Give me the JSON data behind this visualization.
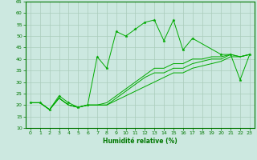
{
  "xlabel": "Humidité relative (%)",
  "ylabel": "",
  "bg_color": "#cce8e0",
  "grid_color": "#aaccbb",
  "line_color": "#00aa00",
  "marker_color": "#00aa00",
  "xlim": [
    -0.5,
    23.5
  ],
  "ylim": [
    10,
    65
  ],
  "yticks": [
    10,
    15,
    20,
    25,
    30,
    35,
    40,
    45,
    50,
    55,
    60,
    65
  ],
  "xticks": [
    0,
    1,
    2,
    3,
    4,
    5,
    6,
    7,
    8,
    9,
    10,
    11,
    12,
    13,
    14,
    15,
    16,
    17,
    18,
    19,
    20,
    21,
    22,
    23
  ],
  "series": [
    {
      "x": [
        0,
        1,
        2,
        3,
        4,
        5,
        6,
        7,
        8,
        9,
        10,
        11,
        12,
        13,
        14,
        15,
        16,
        17,
        20,
        21,
        22,
        23
      ],
      "y": [
        21,
        21,
        18,
        24,
        21,
        19,
        20,
        41,
        36,
        52,
        50,
        53,
        56,
        57,
        48,
        57,
        44,
        49,
        42,
        42,
        31,
        42
      ],
      "has_markers": true
    },
    {
      "x": [
        0,
        1,
        2,
        3,
        4,
        5,
        6,
        7,
        8,
        9,
        10,
        11,
        12,
        13,
        14,
        15,
        16,
        17,
        18,
        19,
        20,
        21,
        22,
        23
      ],
      "y": [
        21,
        21,
        18,
        23,
        20,
        19,
        20,
        20,
        20,
        22,
        24,
        26,
        28,
        30,
        32,
        34,
        34,
        36,
        37,
        38,
        39,
        41,
        41,
        42
      ],
      "has_markers": false
    },
    {
      "x": [
        0,
        1,
        2,
        3,
        4,
        5,
        6,
        7,
        8,
        9,
        10,
        11,
        12,
        13,
        14,
        15,
        16,
        17,
        18,
        19,
        20,
        21,
        22,
        23
      ],
      "y": [
        21,
        21,
        18,
        23,
        20,
        19,
        20,
        20,
        20,
        23,
        26,
        29,
        32,
        34,
        34,
        36,
        36,
        38,
        39,
        40,
        40,
        42,
        41,
        42
      ],
      "has_markers": false
    },
    {
      "x": [
        0,
        1,
        2,
        3,
        4,
        5,
        6,
        7,
        8,
        9,
        10,
        11,
        12,
        13,
        14,
        15,
        16,
        17,
        18,
        19,
        20,
        21,
        22,
        23
      ],
      "y": [
        21,
        21,
        18,
        23,
        20,
        19,
        20,
        20,
        21,
        24,
        27,
        30,
        33,
        36,
        36,
        38,
        38,
        40,
        40,
        41,
        41,
        42,
        41,
        42
      ],
      "has_markers": false
    }
  ]
}
